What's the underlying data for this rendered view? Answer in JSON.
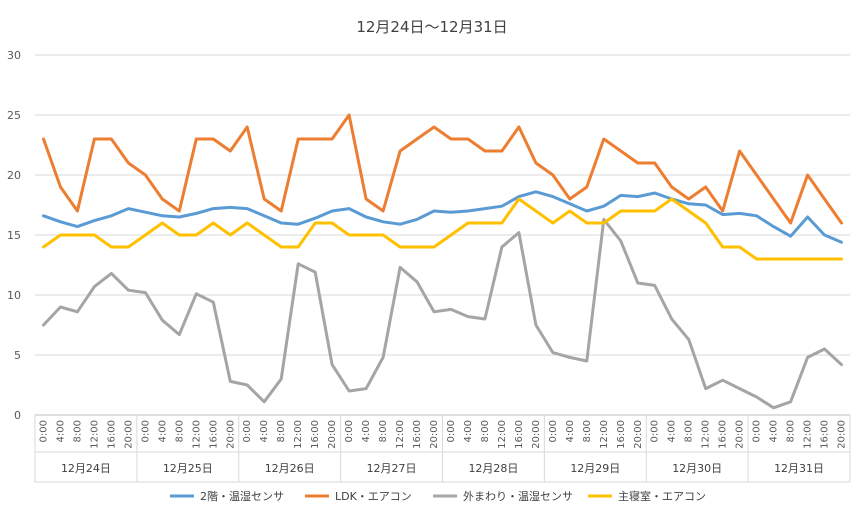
{
  "chart_data": {
    "type": "line",
    "title": "12月24日～12月31日",
    "xlabel": "",
    "ylabel": "",
    "ylim": [
      0,
      30
    ],
    "yticks": [
      0,
      5,
      10,
      15,
      20,
      25,
      30
    ],
    "grid": true,
    "legend_position": "bottom",
    "time_labels": [
      "0:00",
      "4:00",
      "8:00",
      "12:00",
      "16:00",
      "20:00"
    ],
    "days": [
      "12月24日",
      "12月25日",
      "12月26日",
      "12月27日",
      "12月28日",
      "12月29日",
      "12月30日",
      "12月31日"
    ],
    "series": [
      {
        "name": "2階・温湿センサ",
        "color": "#5B9BD5",
        "values": [
          16.6,
          16.1,
          15.7,
          16.2,
          16.6,
          17.2,
          16.9,
          16.6,
          16.5,
          16.8,
          17.2,
          17.3,
          17.2,
          16.6,
          16.0,
          15.9,
          16.4,
          17.0,
          17.2,
          16.5,
          16.1,
          15.9,
          16.3,
          17.0,
          16.9,
          17.0,
          17.2,
          17.4,
          18.2,
          18.6,
          18.2,
          17.6,
          17.0,
          17.4,
          18.3,
          18.2,
          18.5,
          18.0,
          17.6,
          17.5,
          16.7,
          16.8,
          16.6,
          15.7,
          14.9,
          16.5,
          15.0,
          14.4
        ]
      },
      {
        "name": "LDK・エアコン",
        "color": "#ED7D31",
        "values": [
          23,
          19,
          17,
          23,
          23,
          21,
          20,
          18,
          17,
          23,
          23,
          22,
          24,
          18,
          17,
          23,
          23,
          23,
          25,
          18,
          17,
          22,
          23,
          24,
          23,
          23,
          22,
          22,
          24,
          21,
          20,
          18,
          19,
          23,
          22,
          21,
          21,
          19,
          18,
          19,
          17,
          22,
          20,
          18,
          16,
          20,
          18,
          16
        ]
      },
      {
        "name": "外まわり・温湿センサ",
        "color": "#A5A5A5",
        "values": [
          7.5,
          9.0,
          8.6,
          10.7,
          11.8,
          10.4,
          10.2,
          7.9,
          6.7,
          10.1,
          9.4,
          2.8,
          2.5,
          1.1,
          3.0,
          12.6,
          11.9,
          4.2,
          2.0,
          2.2,
          4.8,
          12.3,
          11.1,
          8.6,
          8.8,
          8.2,
          8.0,
          14.0,
          15.2,
          7.5,
          5.2,
          4.8,
          4.5,
          16.3,
          14.5,
          11.0,
          10.8,
          8.0,
          6.3,
          2.2,
          2.9,
          2.2,
          1.5,
          0.6,
          1.1,
          4.8,
          5.5,
          4.2
        ]
      },
      {
        "name": "主寝室・エアコン",
        "color": "#FFC000",
        "values": [
          14,
          15,
          15,
          15,
          14,
          14,
          15,
          16,
          15,
          15,
          16,
          15,
          16,
          15,
          14,
          14,
          16,
          16,
          15,
          15,
          15,
          14,
          14,
          14,
          15,
          16,
          16,
          16,
          18,
          17,
          16,
          17,
          16,
          16,
          17,
          17,
          17,
          18,
          17,
          16,
          14,
          14,
          13,
          13,
          13,
          13,
          13,
          13
        ]
      }
    ]
  }
}
